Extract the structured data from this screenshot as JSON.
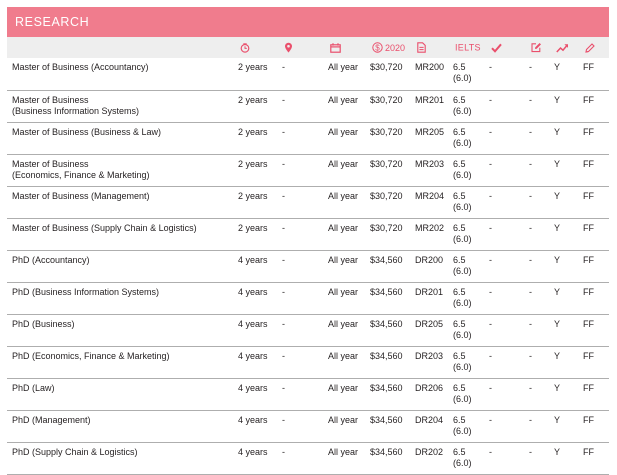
{
  "section_title": "RESEARCH",
  "accent_color": "#ea4f6c",
  "banner_color": "#f07c8d",
  "header": {
    "columns": [
      {
        "key": "duration",
        "icon": "clock-icon"
      },
      {
        "key": "location",
        "icon": "location-pin-icon"
      },
      {
        "key": "intake",
        "icon": "calendar-icon"
      },
      {
        "key": "fee",
        "icon": "dollar-circle-icon",
        "label": "2020"
      },
      {
        "key": "code",
        "icon": "document-icon"
      },
      {
        "key": "ielts",
        "label": "IELTS"
      },
      {
        "key": "entry",
        "icon": "checkmark-icon"
      },
      {
        "key": "apply",
        "icon": "edit-icon"
      },
      {
        "key": "career",
        "icon": "trend-arrow-icon"
      },
      {
        "key": "fee_type",
        "icon": "pencil-icon"
      }
    ]
  },
  "rows": [
    {
      "name": "Master of Business (Accountancy)",
      "duration": "2 years",
      "location": "-",
      "intake": "All year",
      "fee": "$30,720",
      "code": "MR200",
      "ielts": "6.5",
      "ielts_min": "(6.0)",
      "entry": "-",
      "apply": "-",
      "career": "Y",
      "fee_type": "FF"
    },
    {
      "name": "Master of Business (Business Information Systems)",
      "name_line1": "Master of Business",
      "name_line2": "(Business Information Systems)",
      "duration": "2 years",
      "location": "-",
      "intake": "All year",
      "fee": "$30,720",
      "code": "MR201",
      "ielts": "6.5",
      "ielts_min": "(6.0)",
      "entry": "-",
      "apply": "-",
      "career": "Y",
      "fee_type": "FF"
    },
    {
      "name": "Master of Business (Business & Law)",
      "duration": "2 years",
      "location": "-",
      "intake": "All year",
      "fee": "$30,720",
      "code": "MR205",
      "ielts": "6.5",
      "ielts_min": "(6.0)",
      "entry": "-",
      "apply": "-",
      "career": "Y",
      "fee_type": "FF"
    },
    {
      "name": "Master of Business (Economics, Finance & Marketing)",
      "name_line1": "Master of Business",
      "name_line2": "(Economics, Finance & Marketing)",
      "duration": "2 years",
      "location": "-",
      "intake": "All year",
      "fee": "$30,720",
      "code": "MR203",
      "ielts": "6.5",
      "ielts_min": "(6.0)",
      "entry": "-",
      "apply": "-",
      "career": "Y",
      "fee_type": "FF"
    },
    {
      "name": "Master of Business (Management)",
      "duration": "2 years",
      "location": "-",
      "intake": "All year",
      "fee": "$30,720",
      "code": "MR204",
      "ielts": "6.5",
      "ielts_min": "(6.0)",
      "entry": "-",
      "apply": "-",
      "career": "Y",
      "fee_type": "FF"
    },
    {
      "name": "Master of Business (Supply Chain & Logistics)",
      "duration": "2 years",
      "location": "-",
      "intake": "All year",
      "fee": "$30,720",
      "code": "MR202",
      "ielts": "6.5",
      "ielts_min": "(6.0)",
      "entry": "-",
      "apply": "-",
      "career": "Y",
      "fee_type": "FF"
    },
    {
      "name": "PhD (Accountancy)",
      "duration": "4 years",
      "location": "-",
      "intake": "All year",
      "fee": "$34,560",
      "code": "DR200",
      "ielts": "6.5",
      "ielts_min": "(6.0)",
      "entry": "-",
      "apply": "-",
      "career": "Y",
      "fee_type": "FF"
    },
    {
      "name": "PhD (Business Information Systems)",
      "duration": "4 years",
      "location": "-",
      "intake": "All year",
      "fee": "$34,560",
      "code": "DR201",
      "ielts": "6.5",
      "ielts_min": "(6.0)",
      "entry": "-",
      "apply": "-",
      "career": "Y",
      "fee_type": "FF"
    },
    {
      "name": "PhD (Business)",
      "duration": "4 years",
      "location": "-",
      "intake": "All year",
      "fee": "$34,560",
      "code": "DR205",
      "ielts": "6.5",
      "ielts_min": "(6.0)",
      "entry": "-",
      "apply": "-",
      "career": "Y",
      "fee_type": "FF"
    },
    {
      "name": "PhD (Economics, Finance & Marketing)",
      "duration": "4 years",
      "location": "-",
      "intake": "All year",
      "fee": "$34,560",
      "code": "DR203",
      "ielts": "6.5",
      "ielts_min": "(6.0)",
      "entry": "-",
      "apply": "-",
      "career": "Y",
      "fee_type": "FF"
    },
    {
      "name": "PhD (Law)",
      "duration": "4 years",
      "location": "-",
      "intake": "All year",
      "fee": "$34,560",
      "code": "DR206",
      "ielts": "6.5",
      "ielts_min": "(6.0)",
      "entry": "-",
      "apply": "-",
      "career": "Y",
      "fee_type": "FF"
    },
    {
      "name": "PhD (Management)",
      "duration": "4 years",
      "location": "-",
      "intake": "All year",
      "fee": "$34,560",
      "code": "DR204",
      "ielts": "6.5",
      "ielts_min": "(6.0)",
      "entry": "-",
      "apply": "-",
      "career": "Y",
      "fee_type": "FF"
    },
    {
      "name": "PhD (Supply Chain & Logistics)",
      "duration": "4 years",
      "location": "-",
      "intake": "All year",
      "fee": "$34,560",
      "code": "DR202",
      "ielts": "6.5",
      "ielts_min": "(6.0)",
      "entry": "-",
      "apply": "-",
      "career": "Y",
      "fee_type": "FF"
    }
  ]
}
